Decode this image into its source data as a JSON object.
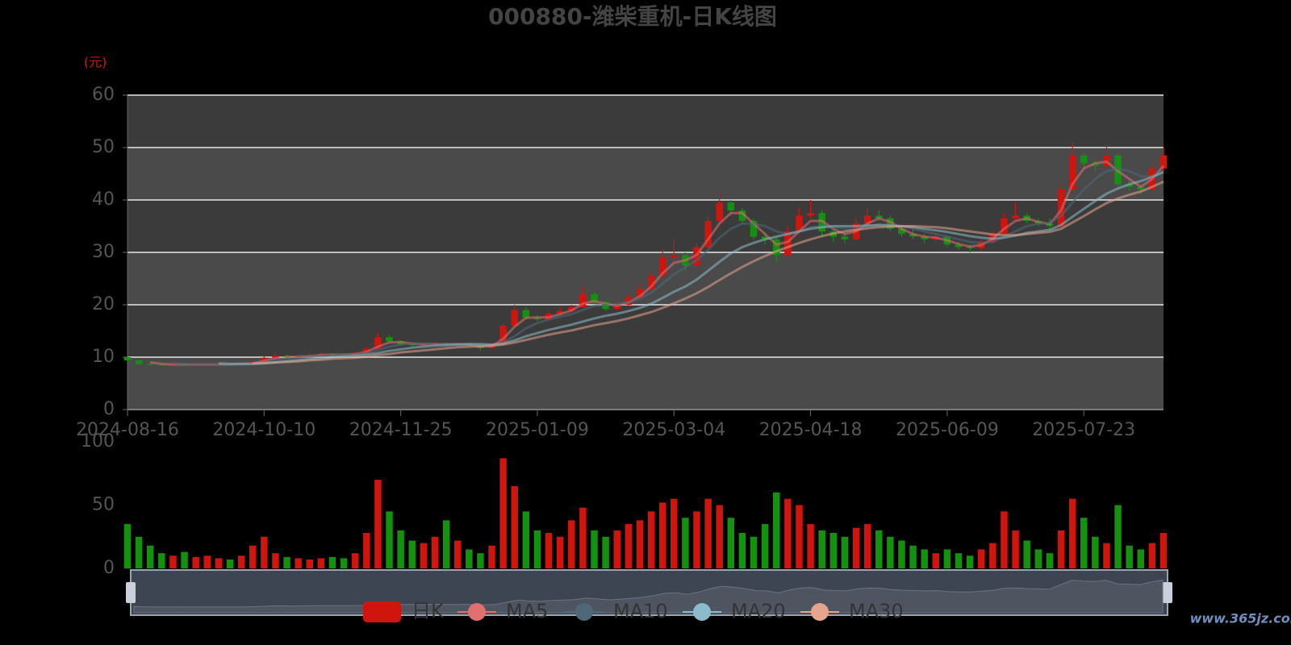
{
  "chart_data": {
    "type": "candlestick",
    "title": "000880-潍柴重机-日K线图",
    "y_label": "(元)",
    "watermark": "www.365jz.com",
    "categories": [
      "2024-08-16",
      null,
      null,
      null,
      null,
      null,
      null,
      null,
      null,
      null,
      null,
      null,
      "2024-10-10",
      null,
      null,
      null,
      null,
      null,
      null,
      null,
      null,
      null,
      null,
      null,
      "2024-11-25",
      null,
      null,
      null,
      null,
      null,
      null,
      null,
      null,
      null,
      null,
      null,
      "2025-01-09",
      null,
      null,
      null,
      null,
      null,
      null,
      null,
      null,
      null,
      null,
      null,
      "2025-03-04",
      null,
      null,
      null,
      null,
      null,
      null,
      null,
      null,
      null,
      null,
      null,
      "2025-04-18",
      null,
      null,
      null,
      null,
      null,
      null,
      null,
      null,
      null,
      null,
      null,
      "2025-06-09",
      null,
      null,
      null,
      null,
      null,
      null,
      null,
      null,
      null,
      null,
      null,
      "2025-07-23",
      null,
      null,
      null,
      null,
      null,
      null,
      null
    ],
    "candle": {
      "name": "日K",
      "up_color": "#d0150f",
      "down_color": "#14910f",
      "open": [
        10.0,
        9.4,
        8.7,
        8.6,
        8.5,
        8.6,
        8.5,
        8.6,
        8.6,
        8.7,
        8.6,
        8.7,
        9.2,
        9.9,
        10.3,
        10.0,
        10.2,
        10.4,
        10.6,
        10.5,
        10.4,
        10.8,
        11.6,
        13.8,
        13.0,
        12.4,
        12.3,
        12.5,
        12.6,
        12.4,
        12.5,
        12.2,
        11.7,
        12.6,
        16.0,
        19.0,
        17.5,
        17.2,
        18.3,
        18.8,
        19.5,
        22.0,
        20.5,
        19.2,
        20.0,
        21.5,
        23.0,
        25.5,
        29.0,
        29.5,
        27.5,
        31.0,
        36.0,
        39.5,
        38.0,
        36.0,
        33.0,
        32.5,
        29.5,
        34.0,
        37.0,
        37.5,
        34.0,
        33.0,
        32.5,
        35.5,
        37.0,
        36.5,
        34.5,
        33.5,
        33.0,
        32.5,
        33.0,
        31.5,
        31.0,
        30.8,
        32.0,
        33.5,
        36.5,
        37.0,
        36.0,
        35.5,
        35.0,
        42.0,
        48.5,
        47.0,
        46.5,
        48.5,
        43.0,
        42.5,
        42.0,
        46.0
      ],
      "close": [
        9.4,
        8.7,
        8.6,
        8.5,
        8.6,
        8.5,
        8.6,
        8.6,
        8.7,
        8.6,
        8.7,
        9.2,
        9.9,
        10.3,
        10.0,
        10.2,
        10.4,
        10.6,
        10.5,
        10.4,
        10.8,
        11.6,
        13.8,
        13.0,
        12.4,
        12.3,
        12.5,
        12.6,
        12.4,
        12.5,
        12.2,
        11.7,
        12.6,
        16.0,
        19.0,
        17.5,
        17.2,
        18.3,
        18.8,
        19.5,
        22.0,
        20.5,
        19.2,
        20.0,
        21.5,
        23.0,
        25.5,
        29.0,
        29.5,
        27.5,
        31.0,
        36.0,
        39.5,
        38.0,
        36.0,
        33.0,
        32.5,
        29.5,
        34.0,
        37.0,
        37.5,
        34.0,
        33.0,
        32.5,
        35.5,
        37.0,
        36.5,
        34.5,
        33.5,
        33.0,
        32.5,
        33.0,
        31.5,
        31.0,
        30.8,
        32.0,
        33.5,
        36.5,
        37.0,
        36.0,
        35.5,
        35.0,
        42.0,
        48.5,
        47.0,
        46.5,
        48.5,
        43.0,
        42.5,
        42.0,
        46.0,
        48.5
      ],
      "high": [
        10.2,
        9.5,
        8.9,
        8.8,
        8.8,
        8.7,
        8.8,
        8.8,
        8.9,
        8.8,
        8.9,
        9.4,
        10.2,
        10.9,
        10.5,
        10.4,
        10.7,
        10.9,
        10.8,
        10.7,
        11.0,
        12.0,
        14.6,
        14.2,
        13.2,
        12.7,
        12.8,
        12.9,
        12.8,
        12.8,
        12.7,
        12.3,
        12.8,
        16.4,
        20.0,
        19.5,
        18.0,
        18.8,
        19.6,
        20.0,
        23.5,
        22.4,
        20.8,
        20.4,
        22.0,
        24.0,
        26.5,
        30.5,
        32.5,
        30.0,
        31.8,
        37.0,
        41.5,
        40.0,
        38.5,
        36.5,
        33.8,
        33.0,
        35.0,
        38.5,
        40.0,
        38.0,
        34.5,
        33.8,
        36.5,
        38.5,
        38.0,
        37.0,
        35.0,
        34.5,
        33.5,
        33.8,
        33.2,
        32.0,
        31.5,
        32.5,
        34.0,
        37.5,
        39.5,
        37.5,
        36.5,
        36.5,
        43.0,
        51.0,
        49.0,
        47.5,
        50.5,
        48.8,
        43.8,
        43.0,
        47.0,
        50.0
      ],
      "low": [
        9.2,
        8.5,
        8.4,
        8.3,
        8.4,
        8.3,
        8.4,
        8.4,
        8.5,
        8.4,
        8.5,
        8.6,
        9.1,
        9.8,
        9.8,
        9.9,
        10.1,
        10.3,
        10.3,
        10.2,
        10.3,
        10.7,
        11.5,
        12.8,
        12.2,
        12.1,
        12.2,
        12.3,
        12.2,
        12.2,
        12.0,
        11.3,
        11.6,
        12.5,
        15.8,
        17.2,
        16.8,
        17.0,
        18.0,
        18.6,
        19.4,
        20.2,
        18.8,
        19.0,
        19.8,
        21.2,
        22.8,
        25.2,
        28.5,
        26.5,
        27.0,
        30.8,
        35.5,
        37.0,
        35.5,
        32.5,
        31.5,
        28.2,
        29.2,
        33.5,
        36.5,
        33.0,
        32.0,
        31.8,
        32.2,
        35.0,
        36.0,
        34.0,
        33.0,
        32.5,
        31.8,
        32.0,
        31.0,
        30.5,
        30.0,
        30.5,
        31.8,
        33.2,
        36.0,
        35.5,
        35.0,
        34.2,
        34.8,
        41.5,
        46.0,
        45.5,
        46.0,
        42.0,
        41.8,
        41.0,
        41.8,
        45.5
      ]
    },
    "volume": [
      35,
      25,
      18,
      12,
      10,
      13,
      9,
      10,
      8,
      7,
      10,
      18,
      25,
      12,
      9,
      8,
      7,
      8,
      9,
      8,
      12,
      28,
      70,
      45,
      30,
      22,
      20,
      25,
      38,
      22,
      15,
      12,
      18,
      87,
      65,
      45,
      30,
      28,
      25,
      38,
      48,
      30,
      25,
      30,
      35,
      38,
      45,
      52,
      55,
      40,
      45,
      55,
      50,
      40,
      28,
      25,
      35,
      60,
      55,
      50,
      35,
      30,
      28,
      25,
      32,
      35,
      30,
      25,
      22,
      18,
      15,
      12,
      15,
      12,
      10,
      15,
      20,
      45,
      30,
      22,
      15,
      12,
      30,
      55,
      40,
      25,
      20,
      50,
      18,
      15,
      20,
      28
    ],
    "ylim": [
      0,
      60
    ],
    "yticks": [
      0,
      10,
      20,
      30,
      40,
      50,
      60
    ],
    "volume_ylim": [
      0,
      100
    ],
    "volume_yticks": [
      0,
      50,
      100
    ],
    "series": [
      {
        "name": "MA5",
        "color": "#e07070",
        "values": [
          null,
          null,
          9.0,
          8.7,
          8.6,
          8.6,
          8.6,
          8.6,
          8.6,
          8.6,
          8.7,
          8.8,
          9.3,
          9.8,
          10.0,
          10.1,
          10.2,
          10.4,
          10.5,
          10.5,
          10.6,
          11.0,
          12.0,
          12.8,
          12.9,
          12.6,
          12.4,
          12.5,
          12.5,
          12.5,
          12.4,
          12.1,
          12.1,
          13.5,
          15.8,
          17.5,
          17.6,
          17.6,
          18.2,
          18.9,
          20.2,
          20.7,
          20.2,
          19.8,
          20.4,
          21.6,
          23.5,
          26.0,
          28.0,
          28.5,
          29.5,
          32.5,
          35.5,
          37.5,
          37.5,
          35.5,
          33.5,
          31.5,
          32.0,
          34.0,
          36.0,
          36.0,
          34.5,
          33.5,
          34.0,
          35.5,
          36.5,
          35.8,
          34.5,
          33.5,
          33.0,
          32.8,
          32.3,
          31.6,
          31.1,
          31.4,
          32.6,
          34.5,
          36.0,
          36.5,
          35.8,
          35.4,
          38.0,
          43.0,
          46.0,
          47.0,
          47.3,
          45.5,
          44.0,
          42.5,
          44.0,
          46.5
        ]
      },
      {
        "name": "MA10",
        "color": "#4f6878",
        "values": [
          null,
          null,
          null,
          null,
          8.8,
          8.7,
          8.6,
          8.6,
          8.6,
          8.6,
          8.6,
          8.7,
          9.0,
          9.4,
          9.7,
          9.9,
          10.1,
          10.3,
          10.4,
          10.4,
          10.5,
          10.8,
          11.4,
          12.0,
          12.4,
          12.6,
          12.6,
          12.5,
          12.5,
          12.5,
          12.4,
          12.3,
          12.2,
          12.8,
          14.0,
          15.5,
          16.5,
          17.2,
          17.7,
          18.2,
          19.0,
          19.8,
          20.0,
          20.1,
          20.5,
          21.2,
          22.3,
          24.0,
          25.8,
          27.2,
          28.5,
          30.5,
          32.8,
          34.5,
          35.5,
          35.5,
          35.0,
          34.0,
          33.5,
          34.0,
          34.8,
          35.0,
          34.8,
          34.5,
          34.5,
          35.0,
          35.4,
          35.3,
          35.0,
          34.5,
          34.0,
          33.5,
          33.0,
          32.5,
          32.0,
          31.8,
          32.0,
          33.0,
          34.0,
          35.0,
          35.5,
          35.6,
          37.0,
          39.5,
          42.0,
          44.0,
          45.5,
          46.0,
          45.5,
          44.5,
          44.5,
          45.5
        ]
      },
      {
        "name": "MA20",
        "color": "#8cbccb",
        "values": [
          null,
          null,
          null,
          null,
          null,
          null,
          null,
          null,
          8.8,
          8.7,
          8.7,
          8.7,
          8.8,
          9.0,
          9.2,
          9.4,
          9.6,
          9.8,
          10.0,
          10.1,
          10.3,
          10.5,
          10.8,
          11.2,
          11.5,
          11.8,
          12.0,
          12.2,
          12.3,
          12.4,
          12.5,
          12.5,
          12.4,
          12.6,
          13.2,
          14.0,
          14.6,
          15.2,
          15.7,
          16.2,
          16.8,
          17.4,
          17.9,
          18.3,
          18.8,
          19.4,
          20.2,
          21.3,
          22.5,
          23.5,
          24.8,
          26.5,
          28.2,
          29.8,
          31.0,
          31.8,
          32.5,
          33.0,
          33.5,
          34.0,
          34.5,
          34.8,
          35.0,
          35.0,
          35.0,
          35.1,
          35.2,
          35.1,
          35.0,
          34.8,
          34.5,
          34.2,
          33.9,
          33.5,
          33.1,
          32.8,
          32.6,
          32.8,
          33.2,
          33.7,
          34.0,
          34.3,
          35.2,
          36.8,
          38.3,
          39.8,
          41.2,
          42.2,
          43.0,
          43.6,
          44.4,
          45.3
        ]
      },
      {
        "name": "MA30",
        "color": "#e4a48e",
        "values": [
          null,
          null,
          null,
          null,
          null,
          null,
          null,
          null,
          null,
          null,
          null,
          8.8,
          8.9,
          9.0,
          9.1,
          9.2,
          9.4,
          9.5,
          9.7,
          9.8,
          9.9,
          10.1,
          10.4,
          10.6,
          10.9,
          11.1,
          11.3,
          11.5,
          11.7,
          11.9,
          12.0,
          12.1,
          12.2,
          12.4,
          12.8,
          13.3,
          13.8,
          14.3,
          14.7,
          15.1,
          15.6,
          16.1,
          16.5,
          16.9,
          17.4,
          18.0,
          18.6,
          19.4,
          20.3,
          21.2,
          22.2,
          23.4,
          24.7,
          26.0,
          27.2,
          28.3,
          29.3,
          30.2,
          31.0,
          31.8,
          32.5,
          33.1,
          33.6,
          34.0,
          34.3,
          34.6,
          34.8,
          34.9,
          35.0,
          35.0,
          34.9,
          34.8,
          34.6,
          34.3,
          34.0,
          33.7,
          33.4,
          33.3,
          33.3,
          33.5,
          33.7,
          33.9,
          34.5,
          35.7,
          36.9,
          38.2,
          39.4,
          40.3,
          41.0,
          41.6,
          42.5,
          43.5
        ]
      }
    ]
  }
}
